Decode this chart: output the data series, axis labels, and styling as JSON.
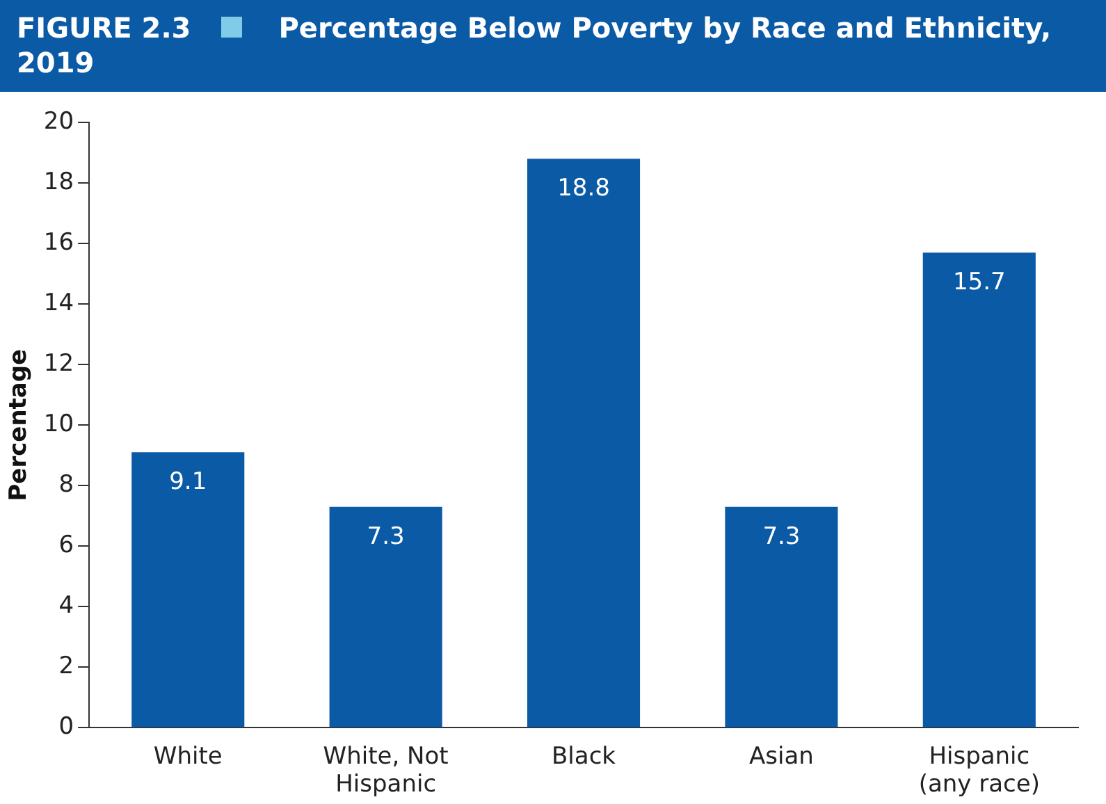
{
  "chart_data": {
    "type": "bar",
    "title": "Percentage Below Poverty by Race and Ethnicity, 2019",
    "annotations": [
      "FIGURE 2.3"
    ],
    "ylabel": "Percentage",
    "categories": [
      "White",
      "White, Not Hispanic",
      "Black",
      "Asian",
      "Hispanic (any race)"
    ],
    "values": [
      9.1,
      7.3,
      18.8,
      7.3,
      15.7
    ],
    "color": "#0b5aa6",
    "ylim": [
      0,
      20
    ],
    "yticks": [
      0,
      2,
      4,
      6,
      8,
      10,
      12,
      14,
      16,
      18,
      20
    ],
    "grid": false,
    "legend": false,
    "data_labels": true
  }
}
